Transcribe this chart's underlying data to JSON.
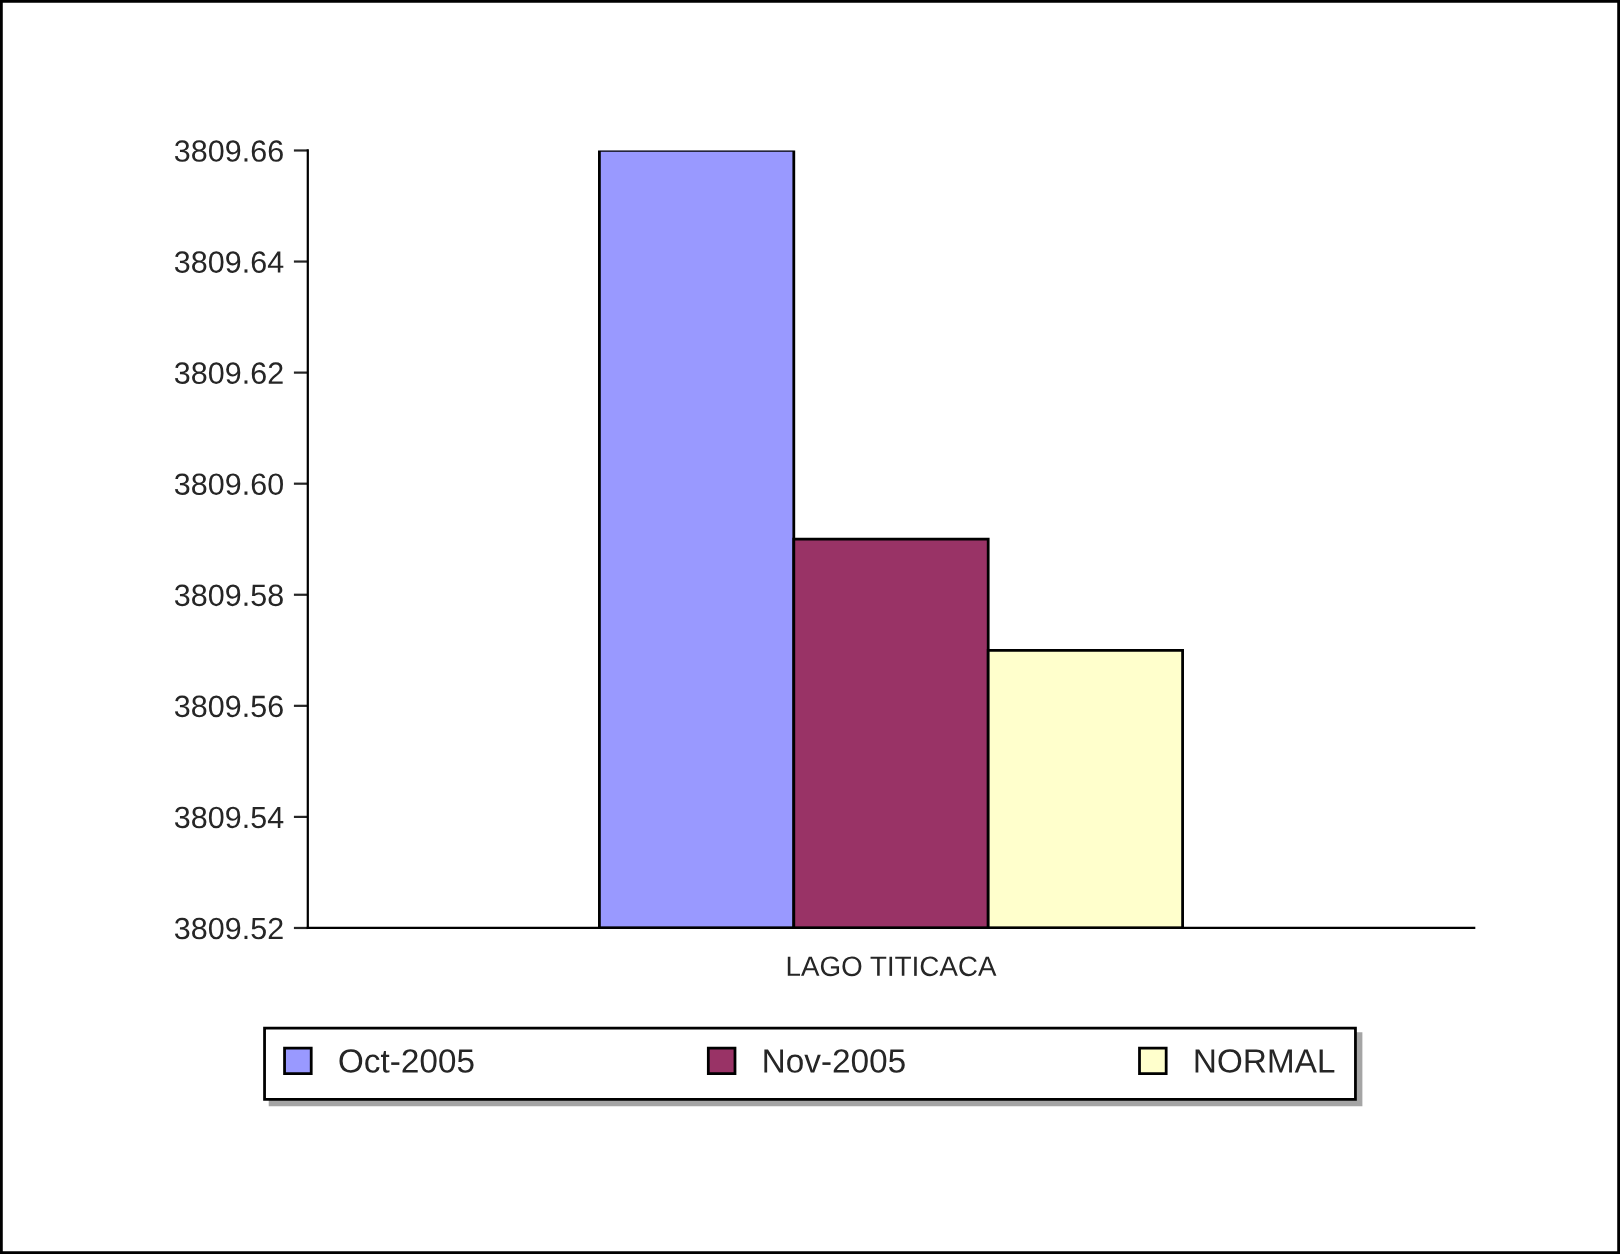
{
  "chart_data": {
    "type": "bar",
    "categories": [
      "LAGO TITICACA"
    ],
    "series": [
      {
        "name": "Oct-2005",
        "color": "#9999ff",
        "values": [
          3809.66
        ]
      },
      {
        "name": "Nov-2005",
        "color": "#993366",
        "values": [
          3809.59
        ]
      },
      {
        "name": "NORMAL",
        "color": "#ffffcc",
        "values": [
          3809.57
        ]
      }
    ],
    "ylim": [
      3809.52,
      3809.66
    ],
    "yticks": [
      {
        "value": 3809.52,
        "label": "3809.52"
      },
      {
        "value": 3809.54,
        "label": "3809.54"
      },
      {
        "value": 3809.56,
        "label": "3809.56"
      },
      {
        "value": 3809.58,
        "label": "3809.58"
      },
      {
        "value": 3809.6,
        "label": "3809.60"
      },
      {
        "value": 3809.62,
        "label": "3809.62"
      },
      {
        "value": 3809.64,
        "label": "3809.64"
      },
      {
        "value": 3809.66,
        "label": "3809.66"
      }
    ],
    "grid": false,
    "legend": "bottom"
  }
}
